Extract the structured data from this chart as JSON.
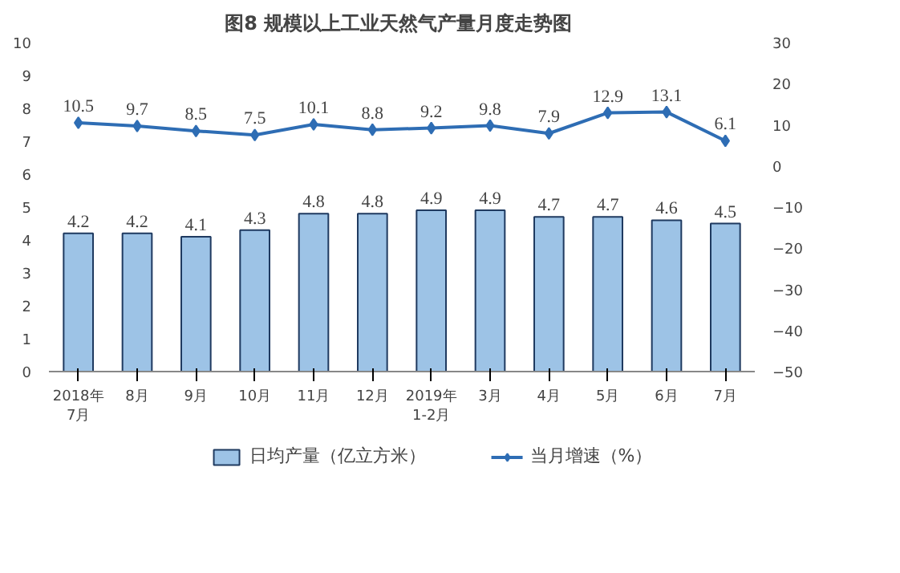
{
  "chart_data": {
    "type": "bar",
    "title": "图8  规模以上工业天然气产量月度走势图",
    "categories": [
      "2018年\n7月",
      "8月",
      "9月",
      "10月",
      "11月",
      "12月",
      "2019年\n1-2月",
      "3月",
      "4月",
      "5月",
      "6月",
      "7月"
    ],
    "series": [
      {
        "name": "日均产量（亿立方米）",
        "color": "#9dc3e6",
        "values": [
          4.2,
          4.2,
          4.1,
          4.3,
          4.8,
          4.8,
          4.9,
          4.9,
          4.7,
          4.7,
          4.6,
          4.5
        ]
      },
      {
        "name": "当月增速（%）",
        "type": "line",
        "axis": "y2",
        "color": "#2e6db4",
        "values": [
          10.5,
          9.7,
          8.5,
          7.5,
          10.1,
          8.8,
          9.2,
          9.8,
          7.9,
          12.9,
          13.1,
          6.1
        ]
      }
    ],
    "ylim": [
      0,
      10
    ],
    "yticks": [
      0,
      1,
      2,
      3,
      4,
      5,
      6,
      7,
      8,
      9,
      10
    ],
    "y2lim": [
      -50,
      30
    ],
    "y2ticks": [
      -50,
      -40,
      -30,
      -20,
      -10,
      0,
      10,
      20,
      30
    ],
    "data_labels": true,
    "legend": "bottom",
    "marker": "diamond",
    "grid": false
  }
}
